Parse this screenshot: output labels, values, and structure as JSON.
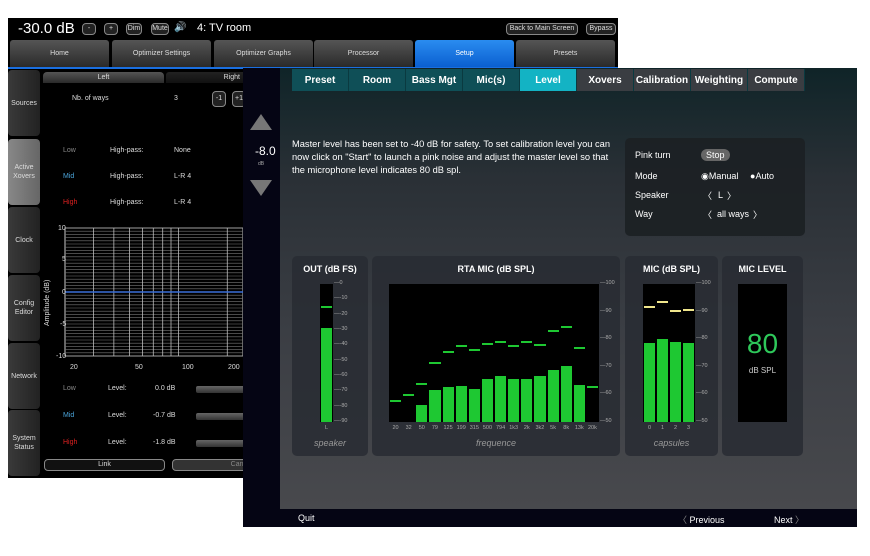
{
  "back_window": {
    "volume": "-30.0 dB",
    "dim": "Dim",
    "mute": "Mute",
    "room": "4: TV room",
    "back_to_main": "Back to Main Screen",
    "bypass": "Bypass",
    "nav": [
      {
        "label": "Home"
      },
      {
        "label": "Optimizer Settings"
      },
      {
        "label": "Optimizer Graphs"
      },
      {
        "label": "Processor"
      },
      {
        "label": "Setup",
        "active": true
      },
      {
        "label": "Presets"
      }
    ],
    "sidebar": [
      {
        "label": "Sources"
      },
      {
        "label": "Active Xovers",
        "active": true
      },
      {
        "label": "Clock"
      },
      {
        "label": "Config Editor"
      },
      {
        "label": "Network"
      },
      {
        "label": "System Status"
      }
    ],
    "channel_tabs": {
      "left": "Left",
      "right": "Right"
    },
    "nb_ways": {
      "label": "Nb. of ways",
      "value": "3",
      "minus": "-1",
      "plus": "+1"
    },
    "filters": [
      {
        "way": "Low",
        "type": "High-pass:",
        "value": "None"
      },
      {
        "way": "Mid",
        "type": "High-pass:",
        "value": "L-R 4"
      },
      {
        "way": "High",
        "type": "High-pass:",
        "value": "L-R 4"
      }
    ],
    "graph": {
      "ylabel": "Amplitude (dB)",
      "yticks": [
        "10",
        "5",
        "0",
        "-5",
        "-10"
      ],
      "xticks": [
        "20",
        "50",
        "100",
        "200"
      ]
    },
    "levels": [
      {
        "way": "Low",
        "label": "Level:",
        "value": "0.0 dB"
      },
      {
        "way": "Mid",
        "label": "Level:",
        "value": "-0.7 dB"
      },
      {
        "way": "High",
        "label": "Level:",
        "value": "-1.8 dB"
      }
    ],
    "link": "Link",
    "cancel": "Canc"
  },
  "front_window": {
    "master": {
      "value": "-8.0",
      "unit": "dB"
    },
    "tabs": [
      {
        "label": "Preset"
      },
      {
        "label": "Room"
      },
      {
        "label": "Bass Mgt"
      },
      {
        "label": "Mic(s)"
      },
      {
        "label": "Level",
        "active": true
      },
      {
        "label": "Xovers"
      },
      {
        "label": "Calibration"
      },
      {
        "label": "Weighting"
      },
      {
        "label": "Compute"
      }
    ],
    "instructions": "Master level has been set to -40 dB for safety. To set calibration level you can now click on \"Start\" to launch a pink noise and adjust the master level so that the microphone level indicates 80 dB spl.",
    "controls": {
      "pink_label": "Pink turn",
      "stop": "Stop",
      "mode_label": "Mode",
      "mode_manual": "Manual",
      "mode_auto": "Auto",
      "mode_selected": "Manual",
      "speaker_label": "Speaker",
      "speaker_value": "L",
      "way_label": "Way",
      "way_value": "all ways"
    },
    "footer": {
      "quit": "Quit",
      "previous": "Previous",
      "next": "Next"
    }
  },
  "chart_data": [
    {
      "type": "bar",
      "title": "OUT (dB FS)",
      "caption": "speaker",
      "categories": [
        "L"
      ],
      "values": [
        -28.8
      ],
      "peaks": [
        -14.8
      ],
      "ylim": [
        -90,
        0
      ],
      "yticks": [
        "0",
        "-10",
        "-20",
        "-30",
        "-40",
        "-50",
        "-60",
        "-70",
        "-80",
        "-90"
      ],
      "color": "#1ec832"
    },
    {
      "type": "bar",
      "title": "RTA MIC (dB SPL)",
      "caption": "frequence",
      "categories": [
        "20",
        "32",
        "50",
        "79",
        "125",
        "199",
        "315",
        "500",
        "794",
        "1k3",
        "2k",
        "3k2",
        "5k",
        "8k",
        "13k",
        "20k"
      ],
      "values": [
        null,
        null,
        56.2,
        61.5,
        62.8,
        62.9,
        61.8,
        65.7,
        66.7,
        65.7,
        65.7,
        66.7,
        68.9,
        70.2,
        63.5,
        null
      ],
      "peaks": [
        57.7,
        59.7,
        63.7,
        71.2,
        75.4,
        77.6,
        76.2,
        78.3,
        79.1,
        77.6,
        79.1,
        78,
        83,
        84.6,
        76.7,
        62.6
      ],
      "ylim": [
        50,
        100
      ],
      "yticks": [
        "100",
        "90",
        "80",
        "70",
        "60",
        "50"
      ],
      "color": "#1ec832"
    },
    {
      "type": "bar",
      "title": "MIC (dB SPL)",
      "caption": "capsules",
      "categories": [
        "0",
        "1",
        "2",
        "3"
      ],
      "values": [
        78.5,
        79.9,
        78.9,
        78.5
      ],
      "peaks": [
        91.7,
        93.6,
        90.3,
        90.7
      ],
      "ylim": [
        50,
        100
      ],
      "yticks": [
        "100",
        "90",
        "80",
        "70",
        "60",
        "50"
      ],
      "color": "#1ec832",
      "peak_color": "#f0e68c"
    },
    {
      "type": "table",
      "title": "MIC LEVEL",
      "value": "80",
      "unit": "dB SPL",
      "color": "#2ec85a"
    }
  ]
}
